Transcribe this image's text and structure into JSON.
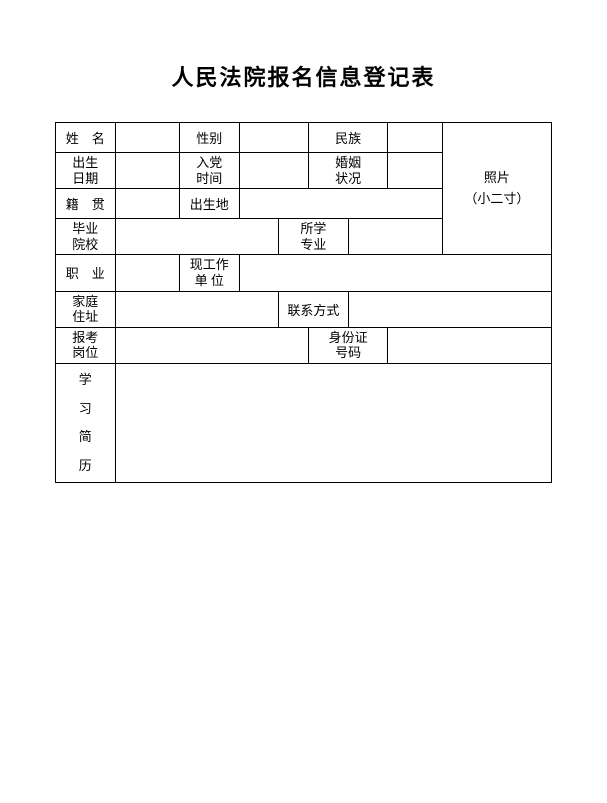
{
  "title": "人民法院报名信息登记表",
  "labels": {
    "name": "姓　名",
    "gender": "性别",
    "ethnicity": "民族",
    "birthDate": "出生\n日期",
    "partyJoinTime": "入党\n时间",
    "maritalStatus": "婚姻\n状况",
    "nativePlace": "籍　贯",
    "birthPlace": "出生地",
    "graduateSchool": "毕业\n院校",
    "major": "所学\n专业",
    "occupation": "职　业",
    "currentWorkUnit": "现工作\n单 位",
    "homeAddress": "家庭\n住址",
    "contact": "联系方式",
    "applyPosition": "报考\n岗位",
    "idNumber": "身份证\n号码",
    "photo": "照片\n（小二寸）",
    "educationHistory": "学\n习\n简\n历"
  },
  "values": {
    "name": "",
    "gender": "",
    "ethnicity": "",
    "birthDate": "",
    "partyJoinTime": "",
    "maritalStatus": "",
    "nativePlace": "",
    "birthPlace": "",
    "graduateSchool": "",
    "major": "",
    "occupation": "",
    "currentWorkUnit": "",
    "homeAddress": "",
    "contact": "",
    "applyPosition": "",
    "idNumber": "",
    "educationHistory": ""
  },
  "style": {
    "backgroundColor": "#ffffff",
    "borderColor": "#000000",
    "textColor": "#000000",
    "titleFontSize": 22,
    "cellFontSize": 13
  }
}
